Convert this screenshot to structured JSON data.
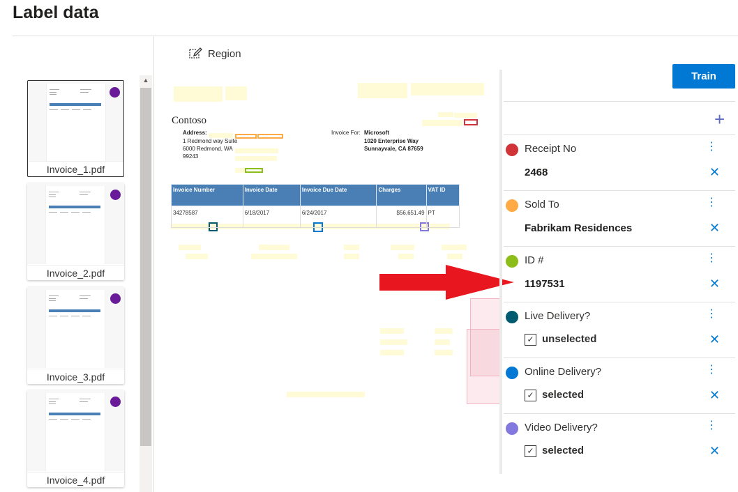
{
  "title": "Label data",
  "toolbar": {
    "region_label": "Region",
    "train_label": "Train"
  },
  "files": [
    {
      "name": "Invoice_1.pdf",
      "selected": true
    },
    {
      "name": "Invoice_2.pdf",
      "selected": false
    },
    {
      "name": "Invoice_3.pdf",
      "selected": false
    },
    {
      "name": "Invoice_4.pdf",
      "selected": false
    }
  ],
  "document": {
    "company": "Contoso",
    "address_label": "Address:",
    "address_lines": [
      "1 Redmond way Suite",
      "6000 Redmond, WA",
      "99243"
    ],
    "invoice_for_label": "Invoice For:",
    "invoice_for_lines": [
      "Microsoft",
      "1020 Enterprise Way",
      "Sunnayvale, CA 87659"
    ],
    "table": {
      "headers": [
        "Invoice Number",
        "Invoice Date",
        "Invoice Due Date",
        "Charges",
        "VAT ID"
      ],
      "row": [
        "34278587",
        "6/18/2017",
        "6/24/2017",
        "$56,651.49",
        "PT"
      ]
    }
  },
  "tags": [
    {
      "name": "Receipt No",
      "color": "#d13438",
      "value": "2468",
      "type": "text"
    },
    {
      "name": "Sold To",
      "color": "#ffaa44",
      "value": "Fabrikam Residences",
      "type": "text"
    },
    {
      "name": "ID #",
      "color": "#8cbd18",
      "value": "1197531",
      "type": "text"
    },
    {
      "name": "Live Delivery?",
      "color": "#005b70",
      "value": "unselected",
      "type": "checkbox"
    },
    {
      "name": "Online Delivery?",
      "color": "#0078d4",
      "value": "selected",
      "type": "checkbox"
    },
    {
      "name": "Video Delivery?",
      "color": "#8378de",
      "value": "selected",
      "type": "checkbox"
    }
  ],
  "colors": {
    "accent": "#0078d4",
    "arrow": "#e8161e",
    "file_dot": "#6a1b9a"
  }
}
